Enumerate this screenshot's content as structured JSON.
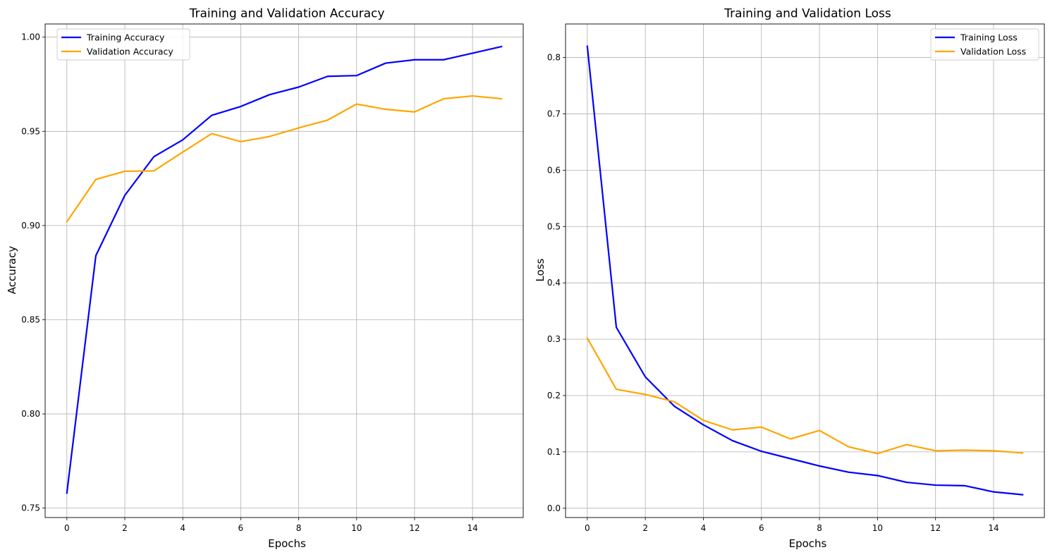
{
  "chart_data": [
    {
      "type": "line",
      "title": "Training and Validation Accuracy",
      "xlabel": "Epochs",
      "ylabel": "Accuracy",
      "x": [
        0,
        1,
        2,
        3,
        4,
        5,
        6,
        7,
        8,
        9,
        10,
        11,
        12,
        13,
        14,
        15
      ],
      "xlim": [
        -0.75,
        15.75
      ],
      "ylim": [
        0.745,
        1.007
      ],
      "xticks": [
        0,
        2,
        4,
        6,
        8,
        10,
        12,
        14
      ],
      "yticks": [
        0.75,
        0.8,
        0.85,
        0.9,
        0.95,
        1.0
      ],
      "ytick_labels": [
        "0.75",
        "0.80",
        "0.85",
        "0.90",
        "0.95",
        "1.00"
      ],
      "grid": true,
      "legend_position": "top-left",
      "series": [
        {
          "name": "Training Accuracy",
          "color": "#0000ff",
          "values": [
            0.758,
            0.884,
            0.916,
            0.9365,
            0.9455,
            0.9585,
            0.9632,
            0.9695,
            0.9735,
            0.9792,
            0.9796,
            0.9862,
            0.988,
            0.988,
            0.9915,
            0.995
          ]
        },
        {
          "name": "Validation Accuracy",
          "color": "#ffa500",
          "values": [
            0.902,
            0.9245,
            0.9288,
            0.929,
            0.939,
            0.9488,
            0.9445,
            0.9473,
            0.9518,
            0.956,
            0.9645,
            0.9617,
            0.9603,
            0.9673,
            0.9688,
            0.9673
          ]
        }
      ]
    },
    {
      "type": "line",
      "title": "Training and Validation Loss",
      "xlabel": "Epochs",
      "ylabel": "Loss",
      "x": [
        0,
        1,
        2,
        3,
        4,
        5,
        6,
        7,
        8,
        9,
        10,
        11,
        12,
        13,
        14,
        15
      ],
      "xlim": [
        -0.75,
        15.75
      ],
      "ylim": [
        -0.0165,
        0.8595
      ],
      "xticks": [
        0,
        2,
        4,
        6,
        8,
        10,
        12,
        14
      ],
      "yticks": [
        0.0,
        0.1,
        0.2,
        0.3,
        0.4,
        0.5,
        0.6,
        0.7,
        0.8
      ],
      "ytick_labels": [
        "0.0",
        "0.1",
        "0.2",
        "0.3",
        "0.4",
        "0.5",
        "0.6",
        "0.7",
        "0.8"
      ],
      "grid": true,
      "legend_position": "top-right",
      "series": [
        {
          "name": "Training Loss",
          "color": "#0000ff",
          "values": [
            0.82,
            0.321,
            0.233,
            0.181,
            0.148,
            0.12,
            0.101,
            0.088,
            0.075,
            0.064,
            0.058,
            0.046,
            0.041,
            0.04,
            0.029,
            0.024
          ]
        },
        {
          "name": "Validation Loss",
          "color": "#ffa500",
          "values": [
            0.302,
            0.211,
            0.202,
            0.189,
            0.156,
            0.139,
            0.144,
            0.123,
            0.138,
            0.109,
            0.097,
            0.113,
            0.102,
            0.103,
            0.102,
            0.098
          ]
        }
      ]
    }
  ]
}
